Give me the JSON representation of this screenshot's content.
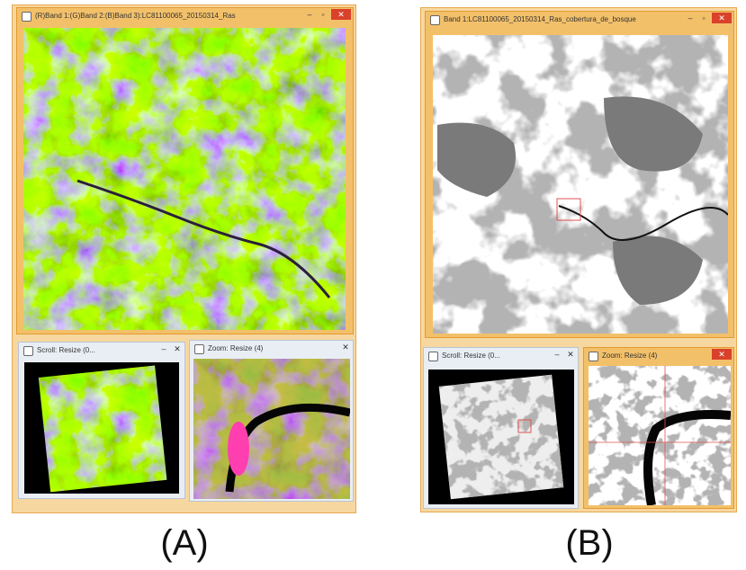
{
  "panels": [
    {
      "label": "(A)",
      "main_window": {
        "title": "(R)Band 1:(G)Band 2:(B)Band 3):LC81100065_20150314_Ras"
      },
      "scroll_window": {
        "title": "Scroll: Resize (0..."
      },
      "zoom_window": {
        "title": "Zoom: Resize (4)"
      }
    },
    {
      "label": "(B)",
      "main_window": {
        "title": "Band 1:LC81100065_20150314_Ras_cobertura_de_bosque"
      },
      "scroll_window": {
        "title": "Scroll: Resize (0..."
      },
      "zoom_window": {
        "title": "Zoom: Resize (4)"
      }
    }
  ]
}
